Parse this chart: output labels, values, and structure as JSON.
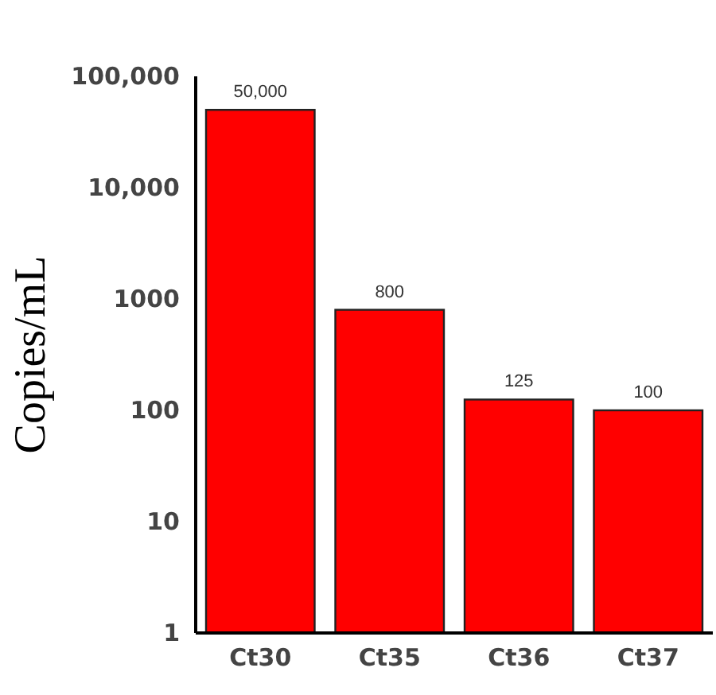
{
  "chart_data": {
    "type": "bar",
    "ylabel": "Copies/mL",
    "categories": [
      "Ct30",
      "Ct35",
      "Ct36",
      "Ct37"
    ],
    "values": [
      50000,
      800,
      125,
      100
    ],
    "color": "#ff0000",
    "value_labels": [
      "50,000",
      "800",
      "125",
      "100"
    ],
    "log": true,
    "ylim": [
      1,
      100000
    ],
    "yticks": [
      1,
      10,
      100,
      {
        "value": 1000,
        "label": "1000"
      },
      {
        "value": 10000,
        "label": "10,000"
      },
      {
        "value": 100000,
        "label": "100,000"
      }
    ],
    "grid": false
  }
}
